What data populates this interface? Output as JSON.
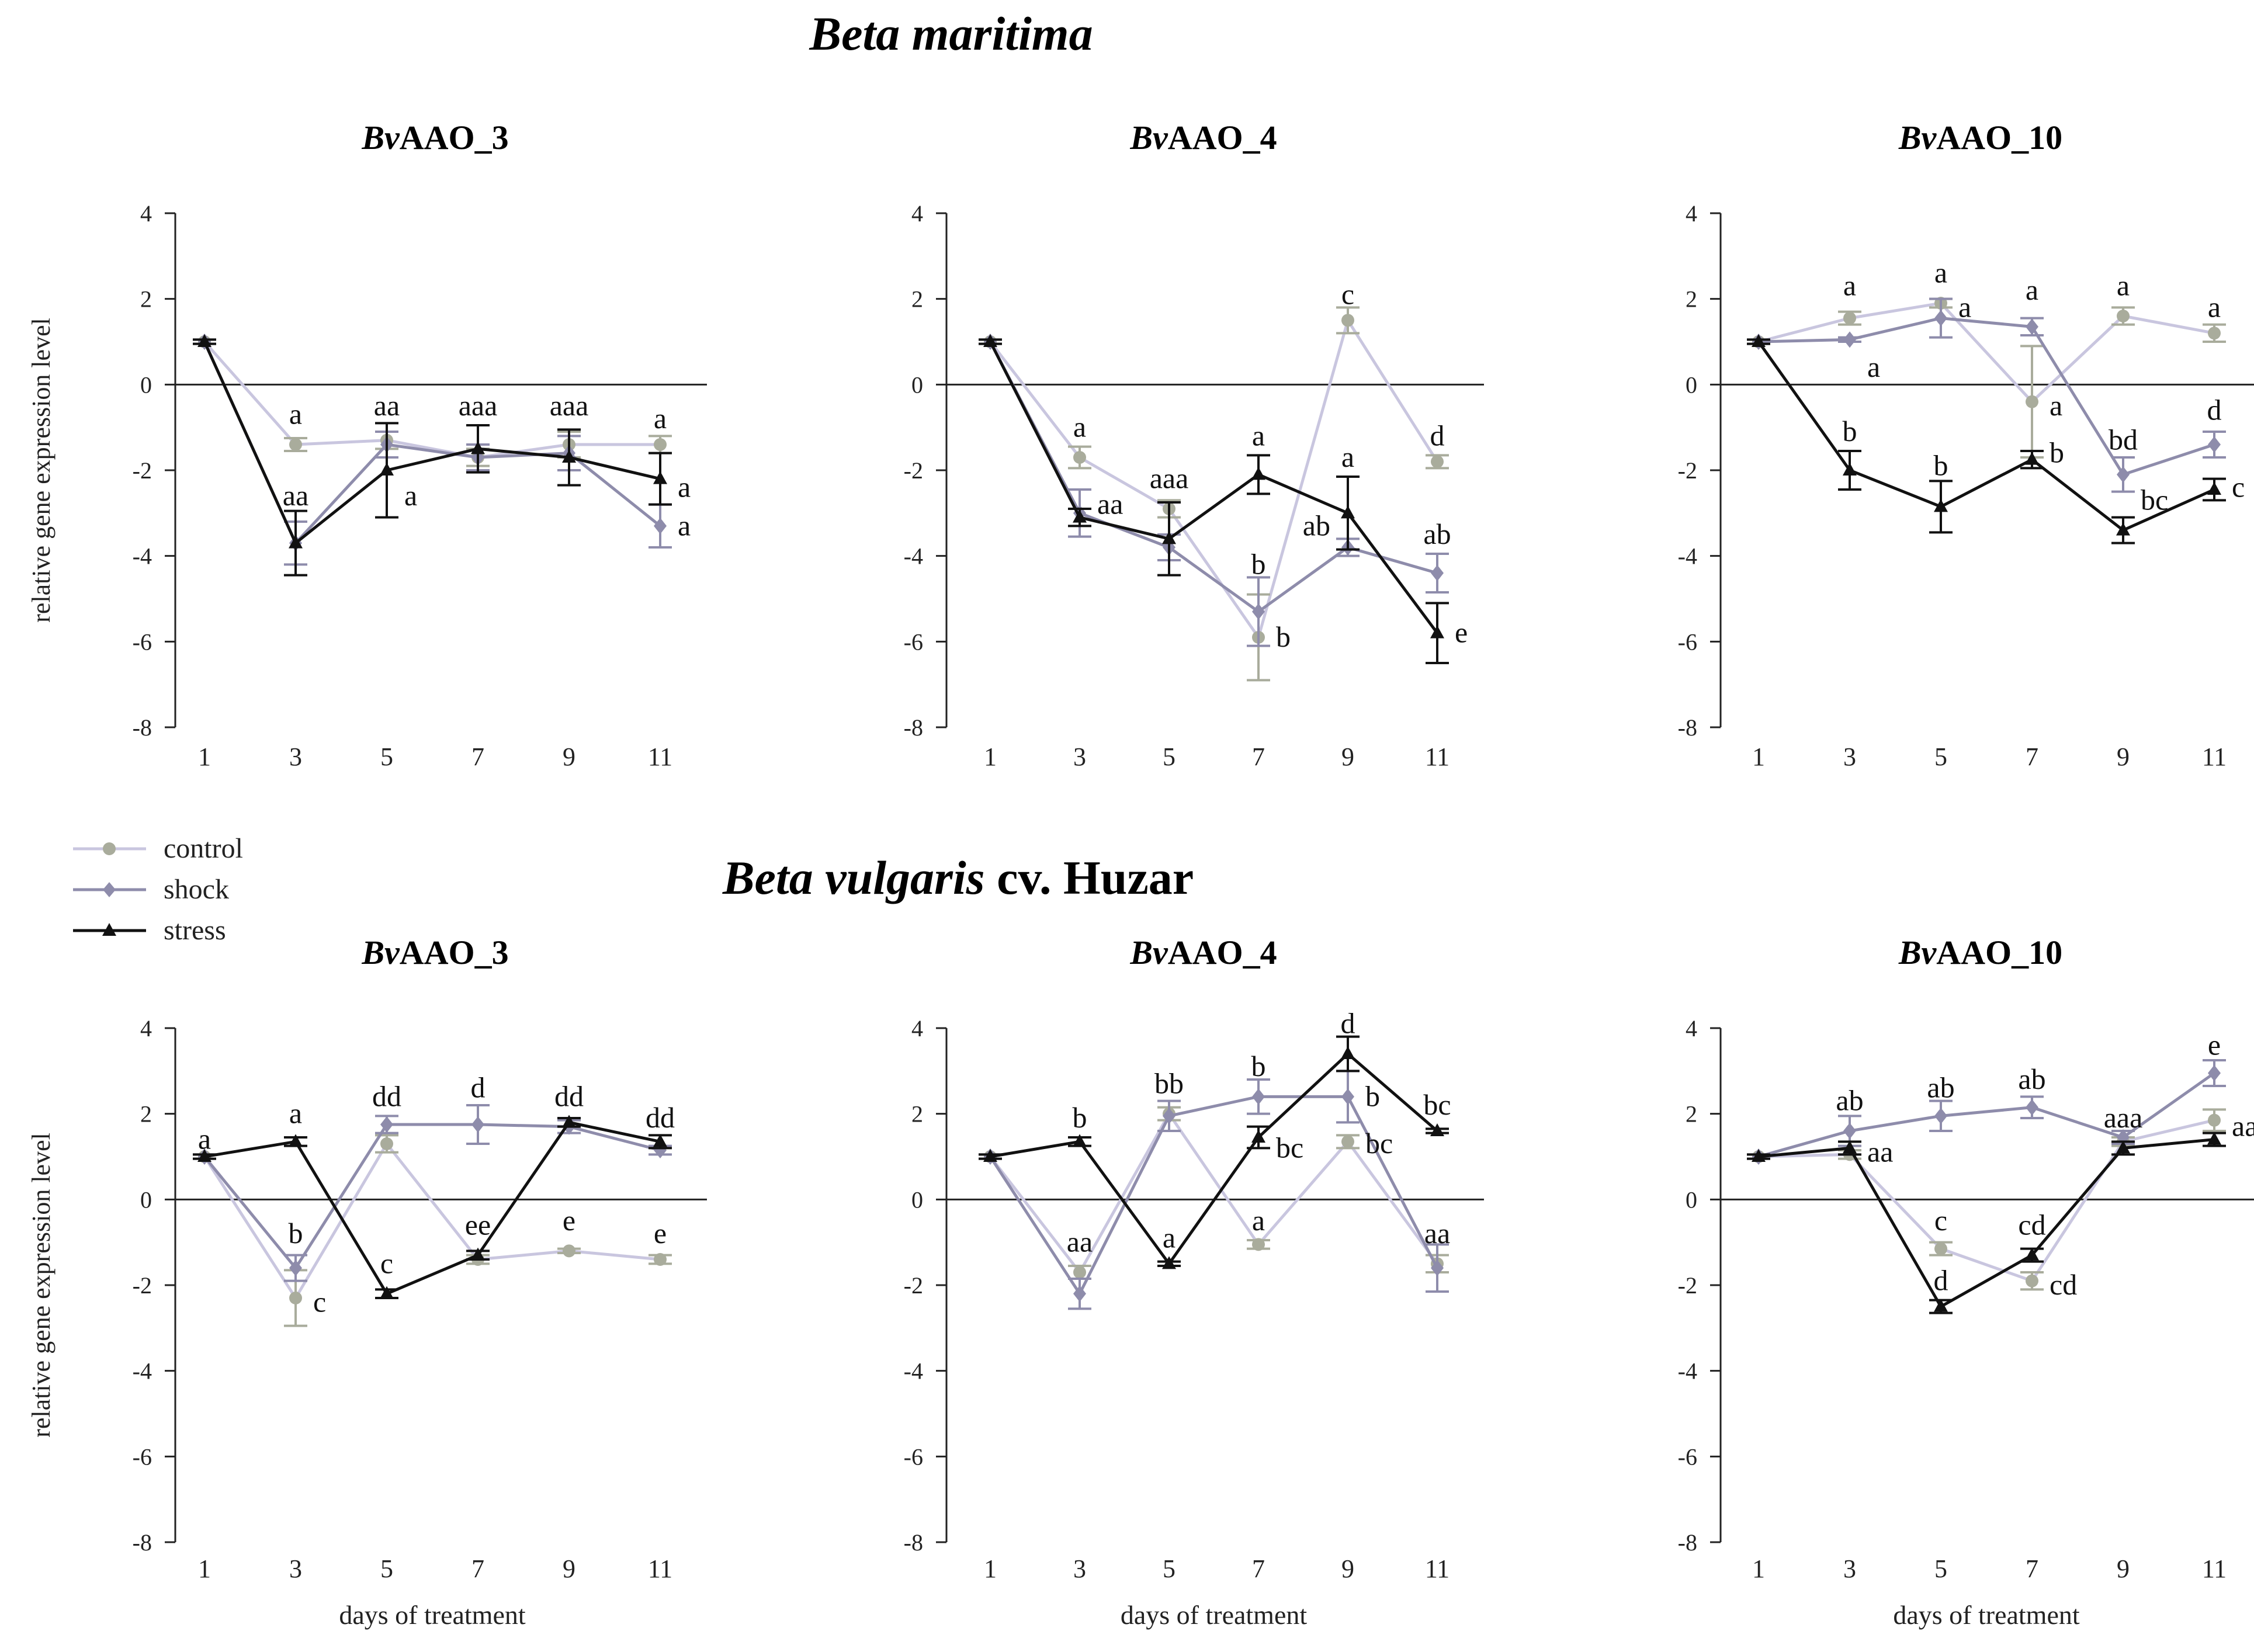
{
  "section_titles": {
    "maritima": "Beta maritima",
    "vulgaris_italic": "Beta vulgaris",
    "vulgaris_rest": " cv. Huzar"
  },
  "legend": [
    {
      "key": "control",
      "label": "control",
      "color": "#a9ac9c",
      "line_color": "#c9c6df",
      "marker": "circle"
    },
    {
      "key": "shock",
      "label": "shock",
      "color": "#8e8cab",
      "line_color": "#8e8cab",
      "marker": "diamond"
    },
    {
      "key": "stress",
      "label": "stress",
      "color": "#111111",
      "line_color": "#111111",
      "marker": "triangle"
    }
  ],
  "axis_labels": {
    "ylabel": "relative gene expression level",
    "xlabel": "days of treatment"
  },
  "chart_data": [
    {
      "type": "line",
      "species": "Beta maritima",
      "title_italic": "Bv",
      "title_rest": "AAO_3",
      "x": [
        1,
        3,
        5,
        7,
        9,
        11
      ],
      "ylim": [
        -8,
        4
      ],
      "yticks": [
        4,
        2,
        0,
        -2,
        -4,
        -6,
        -8
      ],
      "show_xlabel": false,
      "show_ylabel": true,
      "series": [
        {
          "name": "control",
          "values": [
            1.0,
            -1.4,
            -1.3,
            -1.7,
            -1.4,
            -1.4
          ],
          "errors": [
            0.05,
            0.15,
            0.2,
            0.2,
            0.3,
            0.2
          ]
        },
        {
          "name": "shock",
          "values": [
            1.0,
            -3.7,
            -1.4,
            -1.7,
            -1.6,
            -3.3
          ],
          "errors": [
            0.05,
            0.5,
            0.3,
            0.3,
            0.4,
            0.5
          ]
        },
        {
          "name": "stress",
          "values": [
            1.0,
            -3.7,
            -2.0,
            -1.5,
            -1.7,
            -2.2
          ],
          "errors": [
            0.05,
            0.75,
            1.1,
            0.55,
            0.65,
            0.6
          ]
        }
      ],
      "annotations": [
        {
          "x": 3,
          "y": -0.7,
          "text": "a"
        },
        {
          "x": 3,
          "y": -2.6,
          "text": "aa"
        },
        {
          "x": 5,
          "y": -0.5,
          "text": "aa"
        },
        {
          "x": 5,
          "y": -2.6,
          "text": "a",
          "side": "right"
        },
        {
          "x": 7,
          "y": -0.5,
          "text": "aaa"
        },
        {
          "x": 9,
          "y": -0.5,
          "text": "aaa"
        },
        {
          "x": 11,
          "y": -0.8,
          "text": "a"
        },
        {
          "x": 11,
          "y": -2.4,
          "text": "a",
          "side": "right"
        },
        {
          "x": 11,
          "y": -3.3,
          "text": "a",
          "side": "right"
        }
      ]
    },
    {
      "type": "line",
      "species": "Beta maritima",
      "title_italic": "Bv",
      "title_rest": "AAO_4",
      "x": [
        1,
        3,
        5,
        7,
        9,
        11
      ],
      "ylim": [
        -8,
        4
      ],
      "yticks": [
        4,
        2,
        0,
        -2,
        -4,
        -6,
        -8
      ],
      "show_xlabel": false,
      "show_ylabel": false,
      "series": [
        {
          "name": "control",
          "values": [
            1.0,
            -1.7,
            -2.9,
            -5.9,
            1.5,
            -1.8
          ],
          "errors": [
            0.05,
            0.25,
            0.2,
            1.0,
            0.3,
            0.15
          ]
        },
        {
          "name": "shock",
          "values": [
            1.0,
            -3.0,
            -3.8,
            -5.3,
            -3.8,
            -4.4
          ],
          "errors": [
            0.05,
            0.55,
            0.3,
            0.8,
            0.2,
            0.45
          ]
        },
        {
          "name": "stress",
          "values": [
            1.0,
            -3.1,
            -3.6,
            -2.1,
            -3.0,
            -5.8
          ],
          "errors": [
            0.05,
            0.2,
            0.85,
            0.45,
            0.85,
            0.7
          ]
        }
      ],
      "annotations": [
        {
          "x": 3,
          "y": -1.0,
          "text": "a"
        },
        {
          "x": 3,
          "y": -2.8,
          "text": "aa",
          "side": "right"
        },
        {
          "x": 5,
          "y": -2.2,
          "text": "aaa"
        },
        {
          "x": 7,
          "y": -1.2,
          "text": "a"
        },
        {
          "x": 7,
          "y": -4.2,
          "text": "b"
        },
        {
          "x": 7,
          "y": -5.9,
          "text": "b",
          "side": "right"
        },
        {
          "x": 9,
          "y": 2.1,
          "text": "c"
        },
        {
          "x": 9,
          "y": -1.7,
          "text": "a"
        },
        {
          "x": 9,
          "y": -3.3,
          "text": "ab",
          "side": "left"
        },
        {
          "x": 11,
          "y": -1.2,
          "text": "d"
        },
        {
          "x": 11,
          "y": -3.5,
          "text": "ab"
        },
        {
          "x": 11,
          "y": -5.8,
          "text": "e",
          "side": "right"
        }
      ]
    },
    {
      "type": "line",
      "species": "Beta maritima",
      "title_italic": "Bv",
      "title_rest": "AAO_10",
      "x": [
        1,
        3,
        5,
        7,
        9,
        11
      ],
      "ylim": [
        -8,
        4
      ],
      "yticks": [
        4,
        2,
        0,
        -2,
        -4,
        -6,
        -8
      ],
      "show_xlabel": false,
      "show_ylabel": false,
      "series": [
        {
          "name": "control",
          "values": [
            1.0,
            1.55,
            1.9,
            -0.4,
            1.6,
            1.2
          ],
          "errors": [
            0.05,
            0.15,
            0.1,
            1.3,
            0.2,
            0.2
          ]
        },
        {
          "name": "shock",
          "values": [
            1.0,
            1.05,
            1.55,
            1.35,
            -2.1,
            -1.4
          ],
          "errors": [
            0.05,
            0.05,
            0.45,
            0.2,
            0.4,
            0.3
          ]
        },
        {
          "name": "stress",
          "values": [
            1.0,
            -2.0,
            -2.85,
            -1.75,
            -3.4,
            -2.45
          ],
          "errors": [
            0.05,
            0.45,
            0.6,
            0.2,
            0.3,
            0.25
          ]
        }
      ],
      "annotations": [
        {
          "x": 3,
          "y": 2.3,
          "text": "a"
        },
        {
          "x": 3,
          "y": 0.4,
          "text": "a",
          "side": "right"
        },
        {
          "x": 5,
          "y": 2.6,
          "text": "a"
        },
        {
          "x": 5,
          "y": 1.8,
          "text": "a",
          "side": "right"
        },
        {
          "x": 7,
          "y": 2.2,
          "text": "a"
        },
        {
          "x": 7,
          "y": -0.5,
          "text": "a",
          "side": "right"
        },
        {
          "x": 7,
          "y": -1.6,
          "text": "b",
          "side": "right"
        },
        {
          "x": 9,
          "y": 2.3,
          "text": "a"
        },
        {
          "x": 9,
          "y": -1.3,
          "text": "bd"
        },
        {
          "x": 9,
          "y": -2.7,
          "text": "bc",
          "side": "right"
        },
        {
          "x": 11,
          "y": 1.8,
          "text": "a"
        },
        {
          "x": 11,
          "y": -0.6,
          "text": "d"
        },
        {
          "x": 11,
          "y": -2.4,
          "text": "c",
          "side": "right"
        },
        {
          "x": 3,
          "y": -1.1,
          "text": "b"
        },
        {
          "x": 5,
          "y": -1.9,
          "text": "b"
        }
      ]
    },
    {
      "type": "line",
      "species": "Beta vulgaris cv. Huzar",
      "title_italic": "Bv",
      "title_rest": "AAO_3",
      "x": [
        1,
        3,
        5,
        7,
        9,
        11
      ],
      "ylim": [
        -8,
        4
      ],
      "yticks": [
        4,
        2,
        0,
        -2,
        -4,
        -6,
        -8
      ],
      "show_xlabel": true,
      "show_ylabel": true,
      "series": [
        {
          "name": "control",
          "values": [
            1.0,
            -2.3,
            1.3,
            -1.4,
            -1.2,
            -1.4
          ],
          "errors": [
            0.05,
            0.65,
            0.2,
            0.1,
            0.05,
            0.1
          ]
        },
        {
          "name": "shock",
          "values": [
            1.0,
            -1.6,
            1.75,
            1.75,
            1.7,
            1.15
          ],
          "errors": [
            0.05,
            0.3,
            0.2,
            0.45,
            0.15,
            0.1
          ]
        },
        {
          "name": "stress",
          "values": [
            1.0,
            1.35,
            -2.2,
            -1.3,
            1.8,
            1.35
          ],
          "errors": [
            0.05,
            0.1,
            0.1,
            0.1,
            0.1,
            0.15
          ]
        }
      ],
      "annotations": [
        {
          "x": 1,
          "y": 1.4,
          "text": "a"
        },
        {
          "x": 3,
          "y": 2.0,
          "text": "a"
        },
        {
          "x": 3,
          "y": -0.8,
          "text": "b"
        },
        {
          "x": 3,
          "y": -2.4,
          "text": "c",
          "side": "right"
        },
        {
          "x": 5,
          "y": 2.4,
          "text": "dd"
        },
        {
          "x": 5,
          "y": -1.5,
          "text": "c"
        },
        {
          "x": 7,
          "y": 2.6,
          "text": "d"
        },
        {
          "x": 7,
          "y": -0.6,
          "text": "ee"
        },
        {
          "x": 9,
          "y": 2.4,
          "text": "dd"
        },
        {
          "x": 9,
          "y": -0.5,
          "text": "e"
        },
        {
          "x": 11,
          "y": 1.9,
          "text": "dd"
        },
        {
          "x": 11,
          "y": -0.8,
          "text": "e"
        }
      ]
    },
    {
      "type": "line",
      "species": "Beta vulgaris cv. Huzar",
      "title_italic": "Bv",
      "title_rest": "AAO_4",
      "x": [
        1,
        3,
        5,
        7,
        9,
        11
      ],
      "ylim": [
        -8,
        4
      ],
      "yticks": [
        4,
        2,
        0,
        -2,
        -4,
        -6,
        -8
      ],
      "show_xlabel": true,
      "show_ylabel": false,
      "series": [
        {
          "name": "control",
          "values": [
            1.0,
            -1.7,
            2.0,
            -1.05,
            1.35,
            -1.5
          ],
          "errors": [
            0.05,
            0.15,
            0.15,
            0.1,
            0.15,
            0.2
          ]
        },
        {
          "name": "shock",
          "values": [
            1.0,
            -2.2,
            1.95,
            2.4,
            2.4,
            -1.6
          ],
          "errors": [
            0.05,
            0.35,
            0.35,
            0.4,
            0.6,
            0.55
          ]
        },
        {
          "name": "stress",
          "values": [
            1.0,
            1.35,
            -1.5,
            1.45,
            3.4,
            1.6
          ],
          "errors": [
            0.05,
            0.1,
            0.05,
            0.25,
            0.4,
            0.05
          ]
        }
      ],
      "annotations": [
        {
          "x": 3,
          "y": 1.9,
          "text": "b"
        },
        {
          "x": 3,
          "y": -1.0,
          "text": "aa"
        },
        {
          "x": 5,
          "y": 2.7,
          "text": "bb"
        },
        {
          "x": 5,
          "y": -0.9,
          "text": "a"
        },
        {
          "x": 7,
          "y": 3.1,
          "text": "b"
        },
        {
          "x": 7,
          "y": 1.2,
          "text": "bc",
          "side": "right"
        },
        {
          "x": 7,
          "y": -0.5,
          "text": "a"
        },
        {
          "x": 9,
          "y": 4.1,
          "text": "d"
        },
        {
          "x": 9,
          "y": 2.4,
          "text": "b",
          "side": "right"
        },
        {
          "x": 9,
          "y": 1.3,
          "text": "bc",
          "side": "right"
        },
        {
          "x": 11,
          "y": 2.2,
          "text": "bc"
        },
        {
          "x": 11,
          "y": -0.8,
          "text": "aa"
        }
      ]
    },
    {
      "type": "line",
      "species": "Beta vulgaris cv. Huzar",
      "title_italic": "Bv",
      "title_rest": "AAO_10",
      "x": [
        1,
        3,
        5,
        7,
        9,
        11
      ],
      "ylim": [
        -8,
        4
      ],
      "yticks": [
        4,
        2,
        0,
        -2,
        -4,
        -6,
        -8
      ],
      "show_xlabel": true,
      "show_ylabel": false,
      "series": [
        {
          "name": "control",
          "values": [
            1.0,
            1.05,
            -1.15,
            -1.9,
            1.35,
            1.85
          ],
          "errors": [
            0.05,
            0.1,
            0.15,
            0.2,
            0.1,
            0.25
          ]
        },
        {
          "name": "shock",
          "values": [
            1.0,
            1.6,
            1.95,
            2.15,
            1.45,
            2.95
          ],
          "errors": [
            0.05,
            0.35,
            0.35,
            0.25,
            0.15,
            0.3
          ]
        },
        {
          "name": "stress",
          "values": [
            1.0,
            1.2,
            -2.5,
            -1.3,
            1.2,
            1.4
          ],
          "errors": [
            0.05,
            0.15,
            0.15,
            0.15,
            0.15,
            0.15
          ]
        }
      ],
      "annotations": [
        {
          "x": 3,
          "y": 2.3,
          "text": "ab"
        },
        {
          "x": 3,
          "y": 1.1,
          "text": "aa",
          "side": "right"
        },
        {
          "x": 5,
          "y": 2.6,
          "text": "ab"
        },
        {
          "x": 5,
          "y": -0.5,
          "text": "c"
        },
        {
          "x": 5,
          "y": -1.9,
          "text": "d"
        },
        {
          "x": 7,
          "y": 2.8,
          "text": "ab"
        },
        {
          "x": 7,
          "y": -0.6,
          "text": "cd"
        },
        {
          "x": 7,
          "y": -2.0,
          "text": "cd",
          "side": "right"
        },
        {
          "x": 9,
          "y": 1.9,
          "text": "aaa"
        },
        {
          "x": 11,
          "y": 3.6,
          "text": "e"
        },
        {
          "x": 11,
          "y": 1.7,
          "text": "aa",
          "side": "right"
        }
      ]
    }
  ]
}
